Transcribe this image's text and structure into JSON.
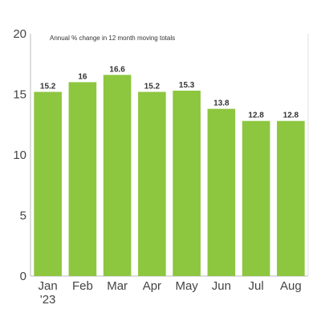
{
  "chart_data": {
    "type": "bar",
    "subtitle": "Annual % change in 12 month moving totals",
    "categories": [
      "Jan '23",
      "Feb",
      "Mar",
      "Apr",
      "May",
      "Jun",
      "Jul",
      "Aug"
    ],
    "category_lines": [
      [
        "Jan",
        "'23"
      ],
      [
        "Feb"
      ],
      [
        "Mar"
      ],
      [
        "Apr"
      ],
      [
        "May"
      ],
      [
        "Jun"
      ],
      [
        "Jul"
      ],
      [
        "Aug"
      ]
    ],
    "values": [
      15.2,
      16,
      16.6,
      15.2,
      15.3,
      13.8,
      12.8,
      12.8
    ],
    "value_labels": [
      "15.2",
      "16",
      "16.6",
      "15.2",
      "15.3",
      "13.8",
      "12.8",
      "12.8"
    ],
    "ylim": [
      0,
      20
    ],
    "yticks": [
      0,
      5,
      10,
      15,
      20
    ],
    "ytick_labels": [
      "0",
      "5",
      "10",
      "15",
      "20"
    ],
    "bar_color": "#8dc63f",
    "axis_color": "#bbbbbb",
    "grid": false
  }
}
